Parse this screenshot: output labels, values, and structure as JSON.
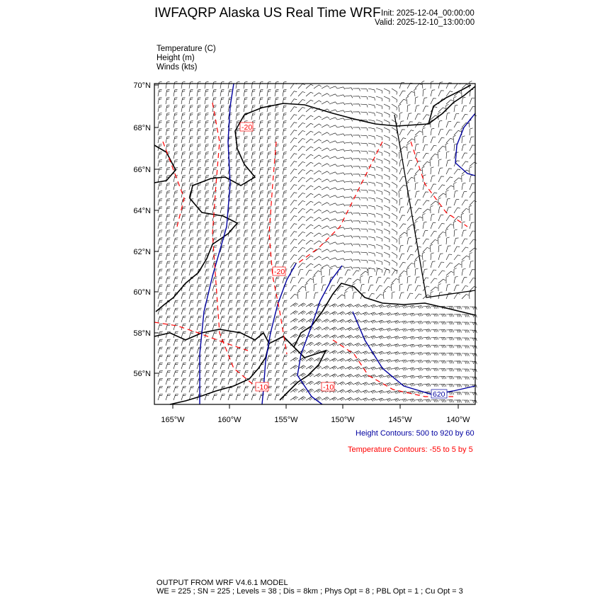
{
  "header": {
    "title": "IWFAQRP Alaska US Real Time WRF",
    "init": "Init: 2025-12-04_00:00:00",
    "valid": "Valid: 2025-12-10_13:00:00"
  },
  "fields": [
    "Temperature   (C)",
    "Height   (m)",
    "Winds   (kts)"
  ],
  "map": {
    "lat_ticks": [
      "70°N",
      "68°N",
      "66°N",
      "64°N",
      "62°N",
      "60°N",
      "58°N",
      "56°N"
    ],
    "lon_ticks": [
      "165°W",
      "160°W",
      "155°W",
      "150°W",
      "145°W",
      "140°W"
    ],
    "contour_labels": {
      "temp": [
        "-20",
        "-20",
        "-10",
        "-10"
      ],
      "height": [
        "620"
      ]
    },
    "colors": {
      "height": "#0000a0",
      "temperature": "#ff0000",
      "coast": "#000000",
      "barbs": "#000000"
    }
  },
  "legend": {
    "height": "Height Contours: 500 to 920 by 60",
    "temperature": "Temperature Contours: -55 to 5 by 5"
  },
  "footer": {
    "line1": "OUTPUT FROM WRF V4.6.1 MODEL",
    "line2": "WE = 225 ; SN = 225 ; Levels = 38 ; Dis = 8km ; Phys Opt = 8 ; PBL Opt = 1 ; Cu Opt = 3"
  }
}
